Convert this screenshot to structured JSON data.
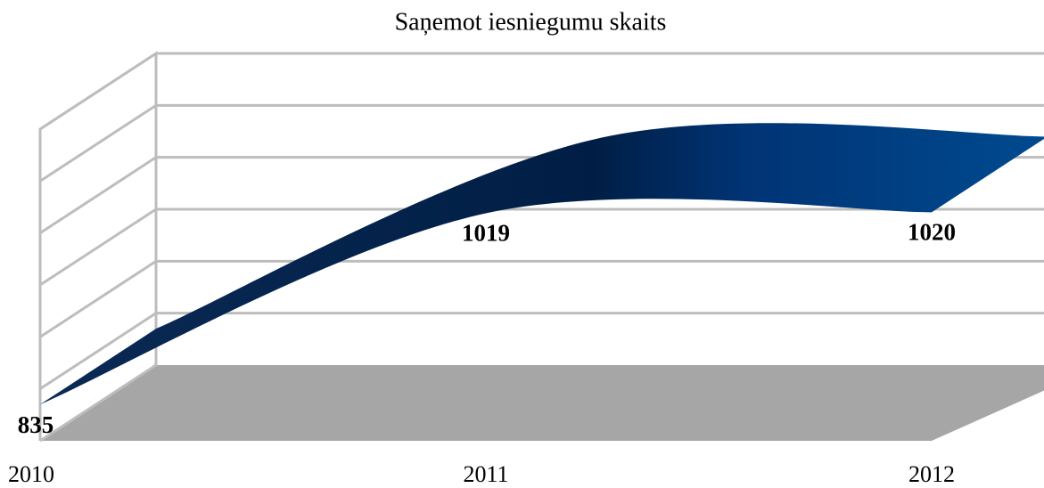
{
  "chart_data": {
    "type": "line3d",
    "title": "Saņemot iesniegumu skaits",
    "categories": [
      "2010",
      "2011",
      "2012"
    ],
    "values": [
      835,
      1019,
      1020
    ],
    "color": "#00306a",
    "ylim": [
      800,
      1100
    ],
    "grid": true
  }
}
